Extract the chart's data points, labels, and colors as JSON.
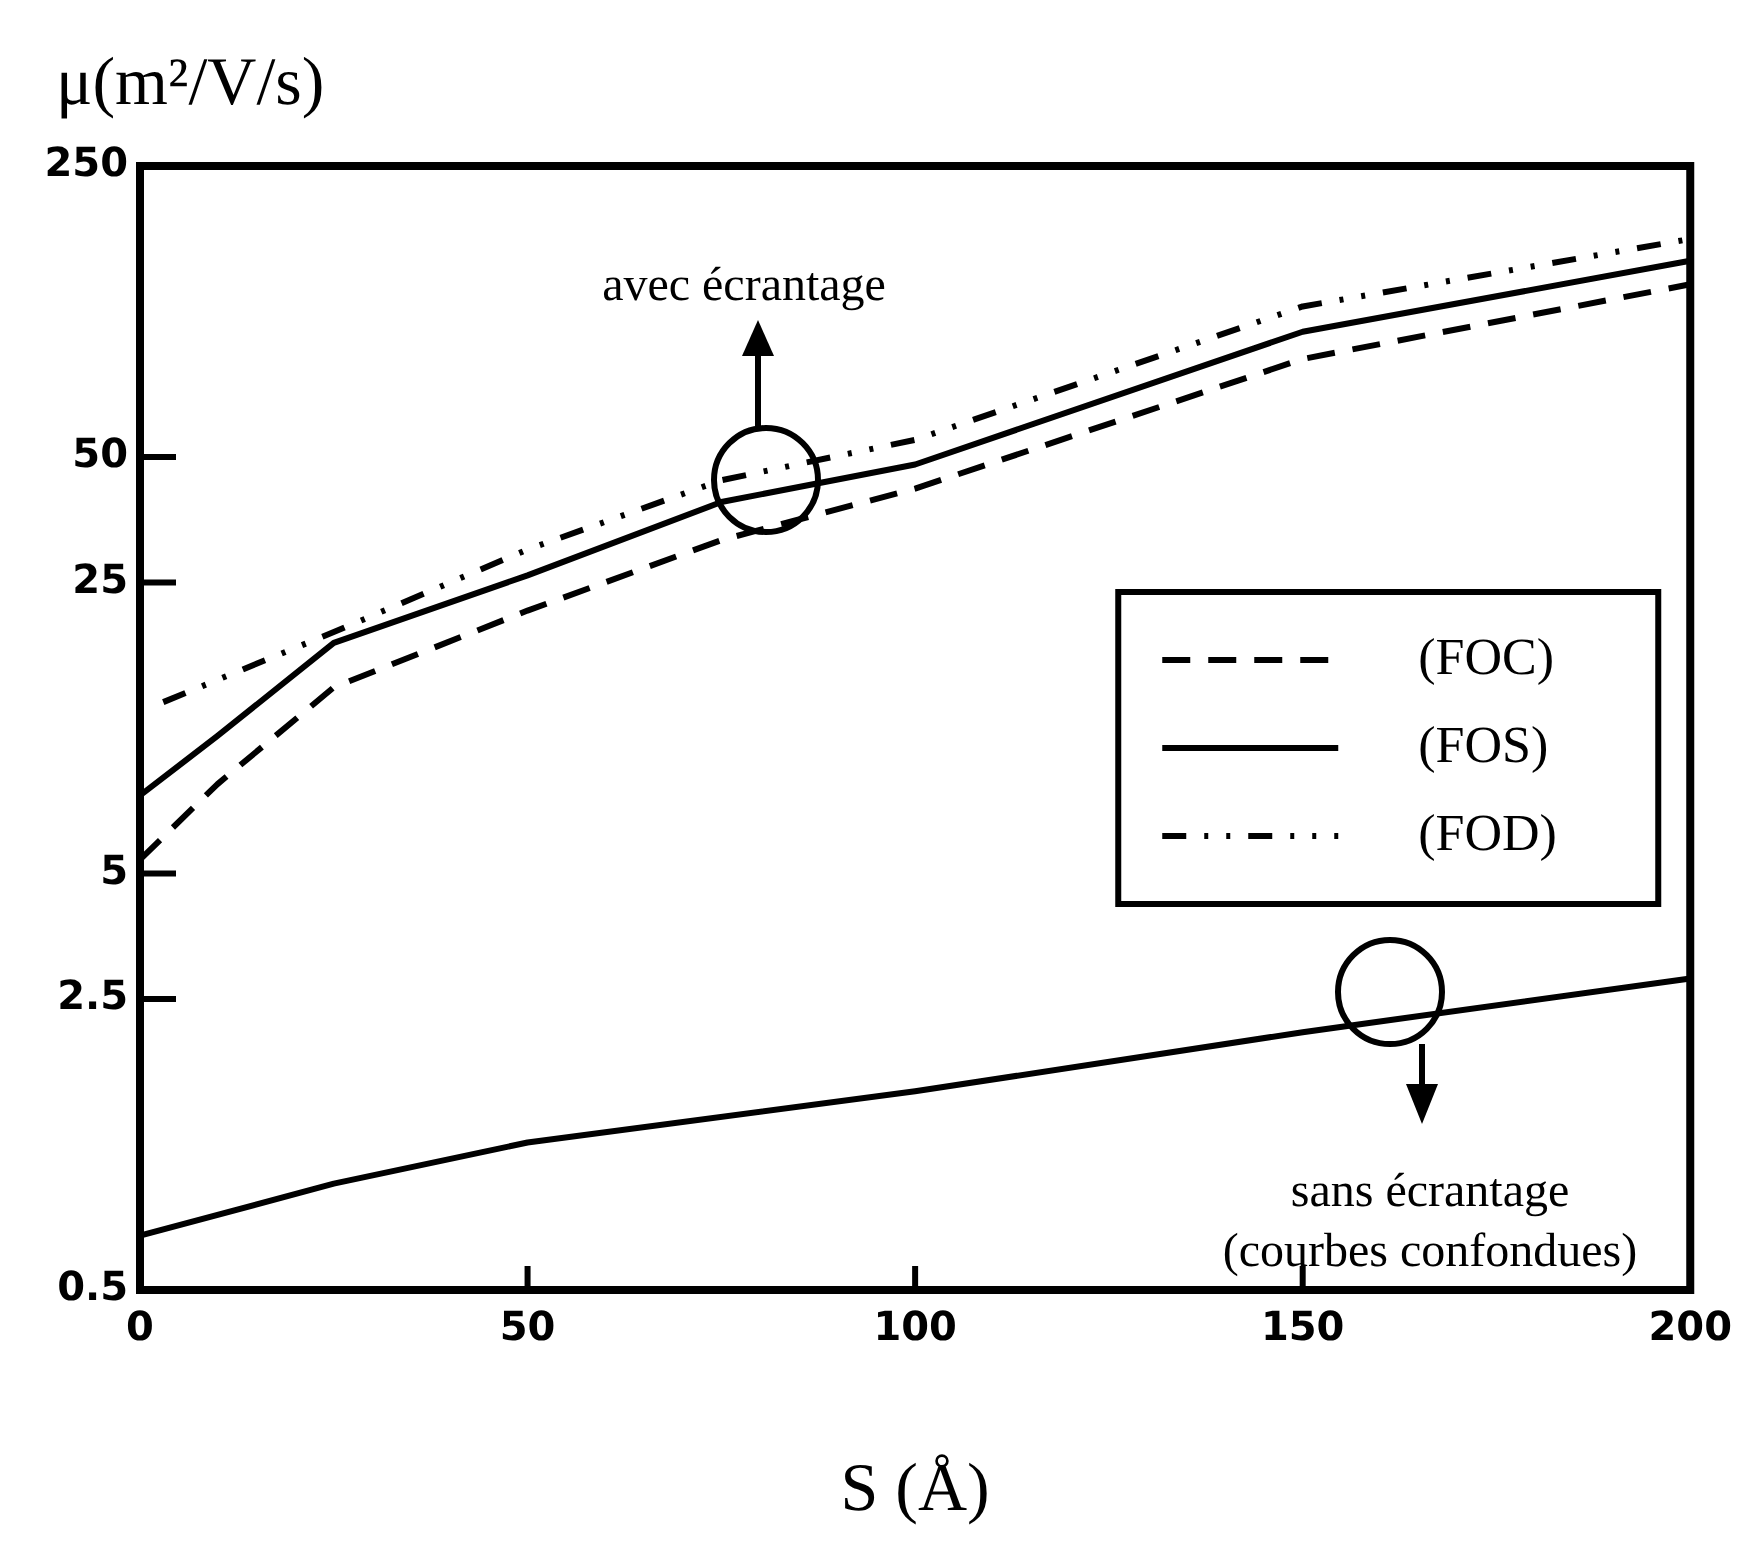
{
  "chart_data": {
    "type": "line",
    "xlabel": "S (Å)",
    "ylabel": "μ(m²/V/s)",
    "xlim": [
      0,
      200
    ],
    "xticks": [
      0,
      50,
      100,
      150,
      200
    ],
    "ylim": [
      0.5,
      250
    ],
    "yticks": [
      0.5,
      2.5,
      5,
      25,
      50,
      250
    ],
    "log": "y",
    "grid": false,
    "legend": "right",
    "marker": "none",
    "series": [
      {
        "name": "(FOC)",
        "color": "#000000",
        "line_style": "dashed",
        "x": [
          0,
          10,
          25,
          50,
          75,
          100,
          150,
          200
        ],
        "values": [
          5.4,
          8.2,
          14,
          21.4,
          31.6,
          42,
          86,
          130
        ]
      },
      {
        "name": "(FOS)",
        "color": "#000000",
        "line_style": "solid",
        "x": [
          0,
          10,
          25,
          50,
          75,
          100,
          150,
          200
        ],
        "values": [
          7.7,
          10.7,
          17.9,
          26,
          39,
          48,
          100,
          148
        ]
      },
      {
        "name": "(FOD)",
        "color": "#000000",
        "line_style": "dotted",
        "x": [
          3,
          25,
          50,
          75,
          100,
          150,
          200
        ],
        "values": [
          12.9,
          19,
          30,
          44,
          55,
          115,
          167
        ]
      },
      {
        "color": "#000000",
        "line_style": "solid",
        "x": [
          0,
          25,
          50,
          100,
          150,
          200
        ],
        "values": [
          0.675,
          0.9,
          1.13,
          1.5,
          2.08,
          2.8
        ]
      }
    ],
    "annotations": [
      "avec écrantage",
      "sans écrantage\n(courbes confondues)"
    ]
  }
}
